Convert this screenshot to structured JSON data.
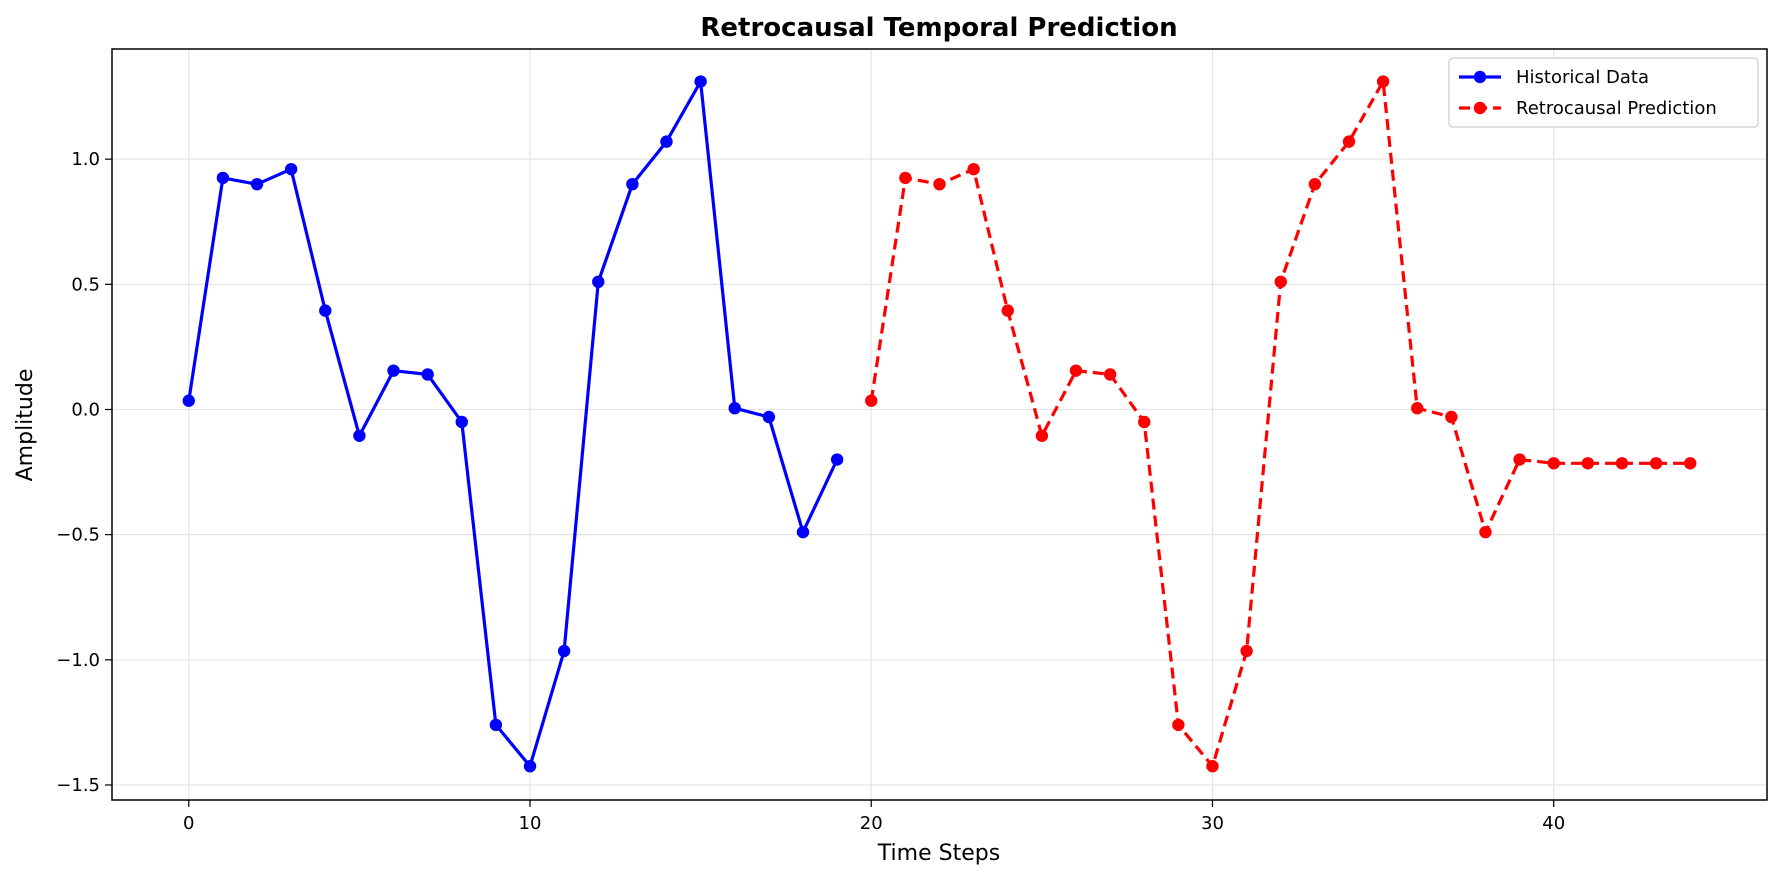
{
  "chart_data": {
    "type": "line",
    "title": "Retrocausal Temporal Prediction",
    "xlabel": "Time Steps",
    "ylabel": "Amplitude",
    "xlim": [
      -2.25,
      46.25
    ],
    "ylim": [
      -1.56,
      1.44
    ],
    "xticks": [
      0,
      10,
      20,
      30,
      40
    ],
    "xtick_labels": [
      "0",
      "10",
      "20",
      "30",
      "40"
    ],
    "yticks": [
      -1.5,
      -1.0,
      -0.5,
      0.0,
      0.5,
      1.0
    ],
    "ytick_labels": [
      "−1.5",
      "−1.0",
      "−0.5",
      "0.0",
      "0.5",
      "1.0"
    ],
    "grid": true,
    "legend_position": "top-right",
    "series": [
      {
        "name": "Historical Data",
        "color": "#0000ff",
        "line_style": "solid",
        "marker": "circle",
        "x": [
          0,
          1,
          2,
          3,
          4,
          5,
          6,
          7,
          8,
          9,
          10,
          11,
          12,
          13,
          14,
          15,
          16,
          17,
          18,
          19
        ],
        "y": [
          0.035,
          0.925,
          0.9,
          0.96,
          0.395,
          -0.105,
          0.155,
          0.14,
          -0.05,
          -1.26,
          -1.425,
          -0.965,
          0.51,
          0.9,
          1.07,
          1.31,
          0.005,
          -0.03,
          -0.49,
          -0.2
        ]
      },
      {
        "name": "Retrocausal Prediction",
        "color": "#ff0000",
        "line_style": "dashed",
        "marker": "circle",
        "x": [
          20,
          21,
          22,
          23,
          24,
          25,
          26,
          27,
          28,
          29,
          30,
          31,
          32,
          33,
          34,
          35,
          36,
          37,
          38,
          39,
          40,
          41,
          42,
          43,
          44
        ],
        "y": [
          0.035,
          0.925,
          0.9,
          0.96,
          0.395,
          -0.105,
          0.155,
          0.14,
          -0.05,
          -1.26,
          -1.425,
          -0.965,
          0.51,
          0.9,
          1.07,
          1.31,
          0.005,
          -0.03,
          -0.49,
          -0.2,
          -0.215,
          -0.215,
          -0.215,
          -0.215,
          -0.215
        ]
      }
    ]
  }
}
